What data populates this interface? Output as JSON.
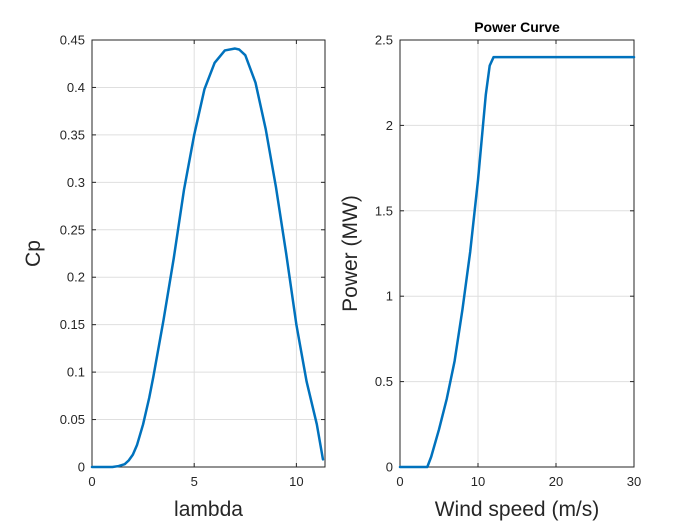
{
  "chart_data": [
    {
      "type": "line",
      "title": "",
      "xlabel": "lambda",
      "ylabel": "Cp",
      "xlim": [
        0,
        11.4
      ],
      "ylim": [
        0,
        0.45
      ],
      "xticks": [
        0,
        5,
        10
      ],
      "yticks": [
        0,
        0.05,
        0.1,
        0.15,
        0.2,
        0.25,
        0.3,
        0.35,
        0.4,
        0.45
      ],
      "xtick_labels": [
        "0",
        "5",
        "10"
      ],
      "ytick_labels": [
        "0",
        "0.05",
        "0.1",
        "0.15",
        "0.2",
        "0.25",
        "0.3",
        "0.35",
        "0.4",
        "0.45"
      ],
      "grid": true,
      "color": "#0072BD",
      "series": [
        {
          "x": [
            0,
            0.5,
            1.0,
            1.3,
            1.6,
            1.8,
            2.0,
            2.2,
            2.5,
            2.8,
            3.0,
            3.5,
            4.0,
            4.5,
            5.0,
            5.5,
            6.0,
            6.5,
            7.0,
            7.2,
            7.5,
            8.0,
            8.5,
            9.0,
            9.5,
            10.0,
            10.5,
            11.0,
            11.3
          ],
          "y": [
            0,
            0,
            0,
            0.001,
            0.003,
            0.007,
            0.013,
            0.023,
            0.045,
            0.073,
            0.095,
            0.155,
            0.22,
            0.292,
            0.35,
            0.398,
            0.426,
            0.439,
            0.441,
            0.44,
            0.434,
            0.405,
            0.356,
            0.295,
            0.225,
            0.15,
            0.09,
            0.045,
            0.008
          ]
        }
      ]
    },
    {
      "type": "line",
      "title": "Power Curve",
      "xlabel": "Wind speed (m/s)",
      "ylabel": "Power (MW)",
      "xlim": [
        0,
        30
      ],
      "ylim": [
        0,
        2.5
      ],
      "xticks": [
        0,
        10,
        20,
        30
      ],
      "yticks": [
        0,
        0.5,
        1,
        1.5,
        2,
        2.5
      ],
      "xtick_labels": [
        "0",
        "10",
        "20",
        "30"
      ],
      "ytick_labels": [
        "0",
        "0.5",
        "1",
        "1.5",
        "2",
        "2.5"
      ],
      "grid": true,
      "color": "#0072BD",
      "series": [
        {
          "x": [
            0,
            3.5,
            4,
            5,
            6,
            7,
            8,
            9,
            10,
            11,
            11.5,
            12,
            30
          ],
          "y": [
            0,
            0,
            0.06,
            0.22,
            0.4,
            0.62,
            0.92,
            1.26,
            1.68,
            2.18,
            2.35,
            2.4,
            2.4
          ]
        }
      ]
    }
  ]
}
